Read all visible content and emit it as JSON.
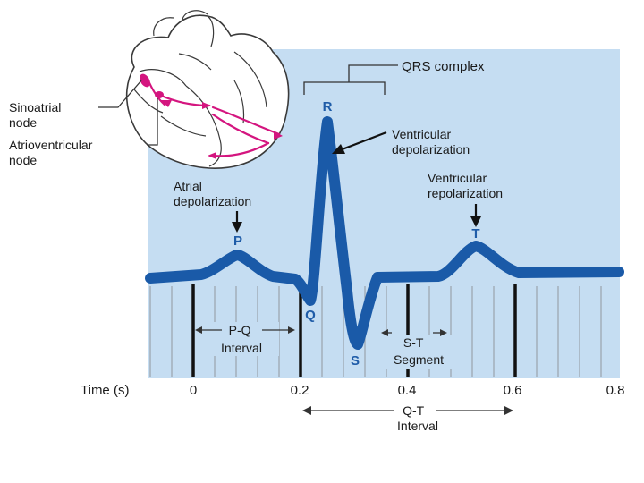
{
  "colors": {
    "panel_fill": "#c5ddf2",
    "trace": "#1a5aa8",
    "wave_letter": "#1f5ca8",
    "heart_pathway": "#d4157f",
    "axis_text": "#1a1a1a"
  },
  "heart": {
    "sinoatrial_label": [
      "Sinoatrial",
      "node"
    ],
    "atrioventricular_label": [
      "Atrioventricular",
      "node"
    ]
  },
  "waves": {
    "p": "P",
    "q": "Q",
    "r": "R",
    "s": "S",
    "t": "T"
  },
  "annotations": {
    "qrs_complex": "QRS complex",
    "ventricular_depolarization": [
      "Ventricular",
      "depolarization"
    ],
    "ventricular_repolarization": [
      "Ventricular",
      "repolarization"
    ],
    "atrial_depolarization": [
      "Atrial",
      "depolarization"
    ],
    "pq_interval": [
      "P-Q",
      "Interval"
    ],
    "st_segment": [
      "S-T",
      "Segment"
    ],
    "qt_interval": [
      "Q-T",
      "Interval"
    ]
  },
  "axis": {
    "label": "Time (s)",
    "ticks": [
      "0",
      "0.2",
      "0.4",
      "0.6",
      "0.8"
    ]
  }
}
